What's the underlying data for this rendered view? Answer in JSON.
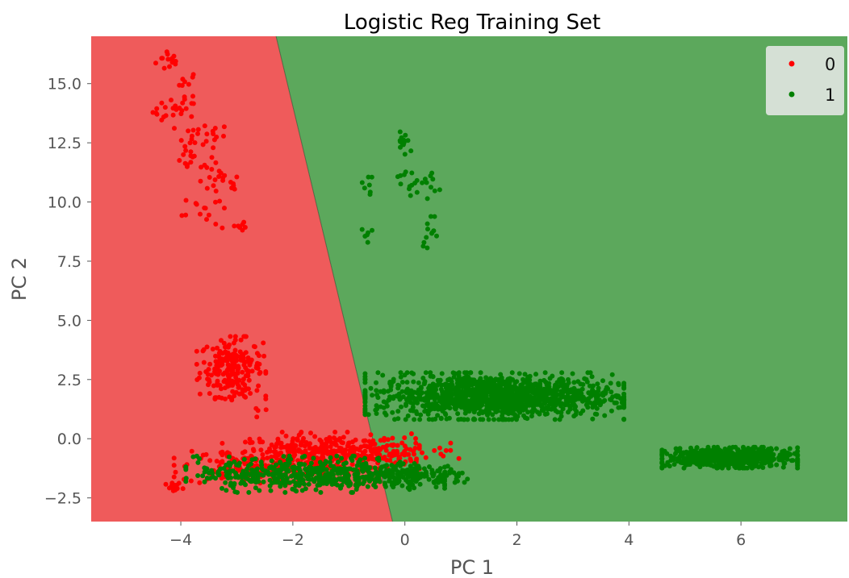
{
  "chart_data": {
    "type": "scatter",
    "title": "Logistic Reg Training Set",
    "xlabel": "PC 1",
    "ylabel": "PC 2",
    "xlim": [
      -5.6,
      7.9
    ],
    "ylim": [
      -3.5,
      17.0
    ],
    "x_ticks": [
      -4,
      -2,
      0,
      2,
      4,
      6
    ],
    "x_tick_labels": [
      "−4",
      "−2",
      "0",
      "2",
      "4",
      "6"
    ],
    "y_ticks": [
      -2.5,
      0.0,
      2.5,
      5.0,
      7.5,
      10.0,
      12.5,
      15.0
    ],
    "y_tick_labels": [
      "−2.5",
      "0.0",
      "2.5",
      "5.0",
      "7.5",
      "10.0",
      "12.5",
      "15.0"
    ],
    "grid": false,
    "legend_position": "top-right",
    "decision_boundary": {
      "points": [
        [
          -2.3,
          17.0
        ],
        [
          -0.22,
          -3.5
        ]
      ],
      "region_colors": {
        "0": "#ef5b5b",
        "1": "#5ca85c"
      }
    },
    "series": [
      {
        "name": "0",
        "color": "#ff0000",
        "clusters": [
          {
            "cx": -4.2,
            "cy": 16.0,
            "sx": 0.12,
            "sy": 0.25,
            "n": 14
          },
          {
            "cx": -3.9,
            "cy": 15.0,
            "sx": 0.1,
            "sy": 0.3,
            "n": 10
          },
          {
            "cx": -4.1,
            "cy": 13.8,
            "sx": 0.2,
            "sy": 0.25,
            "n": 22
          },
          {
            "cx": -3.6,
            "cy": 12.8,
            "sx": 0.25,
            "sy": 0.25,
            "n": 22
          },
          {
            "cx": -3.8,
            "cy": 11.8,
            "sx": 0.2,
            "sy": 0.25,
            "n": 16
          },
          {
            "cx": -3.3,
            "cy": 10.8,
            "sx": 0.2,
            "sy": 0.3,
            "n": 20
          },
          {
            "cx": -3.6,
            "cy": 9.8,
            "sx": 0.2,
            "sy": 0.25,
            "n": 12
          },
          {
            "cx": -3.1,
            "cy": 9.0,
            "sx": 0.2,
            "sy": 0.25,
            "n": 10
          },
          {
            "cx": -3.1,
            "cy": 3.0,
            "sx": 0.28,
            "sy": 0.6,
            "n": 210
          },
          {
            "cx": -3.0,
            "cy": 1.9,
            "sx": 0.2,
            "sy": 0.25,
            "n": 12
          },
          {
            "cx": -2.6,
            "cy": 1.2,
            "sx": 0.1,
            "sy": 0.25,
            "n": 4
          },
          {
            "cx": -1.5,
            "cy": -0.6,
            "sx": 0.8,
            "sy": 0.4,
            "n": 320
          },
          {
            "cx": -2.8,
            "cy": -1.2,
            "sx": 0.6,
            "sy": 0.35,
            "n": 130
          },
          {
            "cx": -0.3,
            "cy": -0.6,
            "sx": 0.35,
            "sy": 0.3,
            "n": 70
          },
          {
            "cx": -4.1,
            "cy": -2.1,
            "sx": 0.08,
            "sy": 0.12,
            "n": 14
          },
          {
            "cx": 0.7,
            "cy": -0.6,
            "sx": 0.12,
            "sy": 0.25,
            "n": 8
          }
        ]
      },
      {
        "name": "1",
        "color": "#008000",
        "clusters": [
          {
            "cx": 0.0,
            "cy": 12.5,
            "sx": 0.1,
            "sy": 0.3,
            "n": 14
          },
          {
            "cx": -0.6,
            "cy": 11.1,
            "sx": 0.05,
            "sy": 0.05,
            "n": 2
          },
          {
            "cx": -0.7,
            "cy": 10.6,
            "sx": 0.06,
            "sy": 0.2,
            "n": 5
          },
          {
            "cx": 0.05,
            "cy": 11.2,
            "sx": 0.08,
            "sy": 0.1,
            "n": 5
          },
          {
            "cx": 0.05,
            "cy": 10.6,
            "sx": 0.1,
            "sy": 0.15,
            "n": 8
          },
          {
            "cx": 0.45,
            "cy": 10.8,
            "sx": 0.08,
            "sy": 0.3,
            "n": 10
          },
          {
            "cx": -0.65,
            "cy": 8.6,
            "sx": 0.06,
            "sy": 0.2,
            "n": 6
          },
          {
            "cx": 0.45,
            "cy": 8.8,
            "sx": 0.08,
            "sy": 0.35,
            "n": 12
          },
          {
            "cx": 1.6,
            "cy": 1.8,
            "sx": 1.05,
            "sy": 0.45,
            "n": 1300
          },
          {
            "cx": -1.6,
            "cy": -1.5,
            "sx": 1.05,
            "sy": 0.35,
            "n": 520
          },
          {
            "cx": 0.4,
            "cy": -1.6,
            "sx": 0.45,
            "sy": 0.2,
            "n": 100
          },
          {
            "cx": 5.8,
            "cy": -0.8,
            "sx": 0.55,
            "sy": 0.2,
            "n": 650
          }
        ]
      }
    ]
  }
}
